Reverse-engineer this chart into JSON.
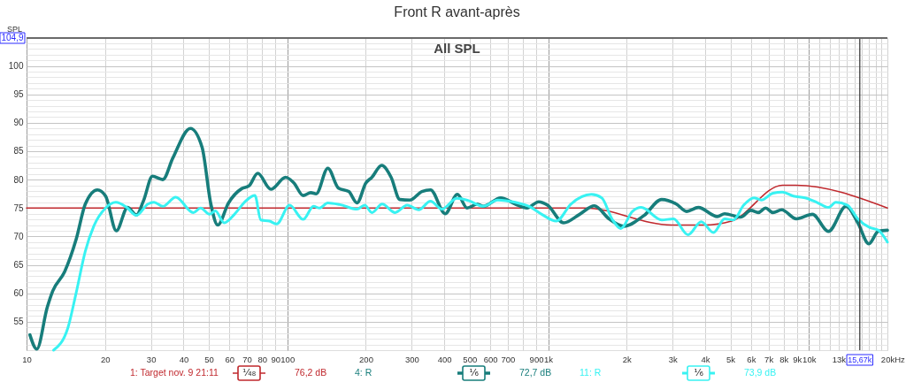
{
  "chart_data": {
    "type": "line",
    "title": "Front R avant-après",
    "subtitle": "All SPL",
    "ylabel": "SPL",
    "xlabel": "Hz",
    "log": "x",
    "grid": true,
    "legend": "bottom",
    "xlim": [
      10,
      20000
    ],
    "ylim": [
      50,
      104.9
    ],
    "xticks": [
      10,
      20,
      30,
      40,
      50,
      60,
      70,
      80,
      90,
      100,
      200,
      300,
      400,
      500,
      600,
      700,
      {
        "value": 800,
        "label": null
      },
      900,
      {
        "value": 1000,
        "label": "1k"
      },
      {
        "value": 2000,
        "label": "2k"
      },
      {
        "value": 3000,
        "label": "3k"
      },
      {
        "value": 4000,
        "label": "4k"
      },
      {
        "value": 5000,
        "label": "5k"
      },
      {
        "value": 6000,
        "label": "6k"
      },
      {
        "value": 7000,
        "label": "7k"
      },
      {
        "value": 8000,
        "label": "8k"
      },
      {
        "value": 9000,
        "label": "9k"
      },
      {
        "value": 10000,
        "label": "10k"
      },
      {
        "value": 11000,
        "label": null
      },
      {
        "value": 12000,
        "label": null
      },
      {
        "value": 13000,
        "label": "13k"
      },
      {
        "value": 14000,
        "label": null
      },
      {
        "value": 15000,
        "label": null
      },
      {
        "value": 16000,
        "label": null
      },
      {
        "value": 17000,
        "label": null
      },
      {
        "value": 18000,
        "label": null
      },
      {
        "value": 19000,
        "label": null
      },
      {
        "value": 20000,
        "label": "20k"
      }
    ],
    "yticks": [
      {
        "value": 51,
        "label": null
      },
      {
        "value": 52,
        "label": null
      },
      {
        "value": 53,
        "label": null
      },
      {
        "value": 54,
        "label": null
      },
      55,
      {
        "value": 56,
        "label": null
      },
      {
        "value": 57,
        "label": null
      },
      {
        "value": 58,
        "label": null
      },
      {
        "value": 59,
        "label": null
      },
      60,
      {
        "value": 61,
        "label": null
      },
      {
        "value": 62,
        "label": null
      },
      {
        "value": 63,
        "label": null
      },
      {
        "value": 64,
        "label": null
      },
      65,
      {
        "value": 66,
        "label": null
      },
      {
        "value": 67,
        "label": null
      },
      {
        "value": 68,
        "label": null
      },
      {
        "value": 69,
        "label": null
      },
      70,
      {
        "value": 71,
        "label": null
      },
      {
        "value": 72,
        "label": null
      },
      {
        "value": 73,
        "label": null
      },
      {
        "value": 74,
        "label": null
      },
      75,
      {
        "value": 76,
        "label": null
      },
      {
        "value": 77,
        "label": null
      },
      {
        "value": 78,
        "label": null
      },
      {
        "value": 79,
        "label": null
      },
      80,
      {
        "value": 81,
        "label": null
      },
      {
        "value": 82,
        "label": null
      },
      {
        "value": 83,
        "label": null
      },
      {
        "value": 84,
        "label": null
      },
      85,
      {
        "value": 86,
        "label": null
      },
      {
        "value": 87,
        "label": null
      },
      {
        "value": 88,
        "label": null
      },
      {
        "value": 89,
        "label": null
      },
      90,
      {
        "value": 91,
        "label": null
      },
      {
        "value": 92,
        "label": null
      },
      {
        "value": 93,
        "label": null
      },
      {
        "value": 94,
        "label": null
      },
      95,
      {
        "value": 96,
        "label": null
      },
      {
        "value": 97,
        "label": null
      },
      {
        "value": 98,
        "label": null
      },
      {
        "value": 99,
        "label": null
      },
      100,
      {
        "value": 101,
        "label": null
      },
      {
        "value": 102,
        "label": null
      },
      {
        "value": 103,
        "label": null
      },
      {
        "value": 104,
        "label": null
      }
    ],
    "series": [
      {
        "name": "1: Target nov. 9 21:11",
        "color": "#c0282d",
        "x": [
          10,
          1380,
          2980,
          3960,
          5050,
          7910,
          8900,
          20000
        ],
        "values": [
          75,
          75,
          72,
          72,
          72.7,
          79,
          79,
          75
        ]
      },
      {
        "name": "4: R",
        "color": "#177d7b",
        "x": [
          10.3,
          10.95,
          12,
          12.6,
          14,
          15.5,
          16.8,
          18.7,
          20.1,
          22.1,
          24.4,
          26.4,
          28.1,
          30.4,
          33.3,
          36.4,
          42.5,
          47.1,
          50.9,
          54.1,
          59.5,
          66.8,
          71.3,
          77,
          86.5,
          98.5,
          106,
          115,
          123,
          129,
          143,
          157,
          172,
          185,
          200,
          211,
          230,
          250,
          270,
          295,
          328,
          354,
          403,
          449,
          489,
          535,
          564,
          658,
          748,
          830,
          920,
          995,
          1147,
          1321,
          1504,
          1712,
          1948,
          2334,
          2724,
          3102,
          3396,
          3766,
          4455,
          4752,
          5473,
          5995,
          6393,
          6823,
          7278,
          7864,
          8950,
          10316,
          11885,
          13883,
          15400,
          16980,
          18450,
          20000
        ],
        "values": [
          52.7,
          50.2,
          57.5,
          60.4,
          63.8,
          69.5,
          75.7,
          78.2,
          77.1,
          71,
          75.1,
          73.8,
          76.3,
          80.6,
          80,
          83.8,
          89,
          85.7,
          75.7,
          72,
          75.9,
          78.4,
          78.9,
          81.1,
          78.3,
          80.4,
          79.4,
          77.2,
          77.7,
          77.5,
          82,
          78.5,
          77.9,
          75.9,
          79.4,
          80.4,
          82.5,
          80.4,
          76.5,
          76.4,
          77.9,
          78.2,
          74,
          77.4,
          75,
          75.7,
          75.3,
          76.8,
          75.7,
          75,
          76.1,
          75.5,
          72.4,
          73.9,
          75.4,
          73.1,
          71.8,
          73.7,
          76.5,
          75.7,
          74.4,
          75.1,
          73.5,
          74,
          73.4,
          74.6,
          74.2,
          75,
          74.2,
          74.7,
          73.1,
          73.9,
          70.9,
          75.3,
          72.4,
          68.7,
          70.9,
          71.1
        ]
      },
      {
        "name": "11: R",
        "color": "#38f2f2",
        "x": [
          12.7,
          14.4,
          15.5,
          16.8,
          18.1,
          20.1,
          22,
          24.1,
          26.4,
          29.2,
          30.8,
          33.3,
          37.3,
          43.6,
          46.5,
          50.3,
          53,
          57.2,
          62.7,
          69.5,
          75.1,
          79.1,
          85.4,
          91.1,
          102,
          115,
          126,
          133,
          143,
          159,
          185,
          198,
          211,
          231,
          259,
          288,
          319,
          354,
          391,
          447,
          495,
          564,
          641,
          748,
          852,
          945,
          1075,
          1223,
          1466,
          1605,
          1757,
          1899,
          2105,
          2275,
          2724,
          3024,
          3439,
          3864,
          4306,
          4752,
          5134,
          5620,
          6152,
          6566,
          7278,
          7910,
          8718,
          9672,
          10722,
          11885,
          12686,
          14060,
          15400,
          17075,
          18450,
          20000
        ],
        "values": [
          50,
          53.9,
          60.1,
          67.4,
          71.8,
          75,
          76,
          75.2,
          73.7,
          75.7,
          76,
          75.3,
          76.9,
          74.2,
          75,
          73.9,
          74.5,
          72.4,
          73.9,
          76.3,
          77.2,
          72.9,
          72.7,
          72.2,
          75.5,
          73,
          75.3,
          75,
          75.9,
          75.6,
          74.8,
          75.5,
          74.2,
          75.7,
          74.2,
          75.5,
          74.7,
          76.2,
          74.8,
          76.7,
          76.3,
          75.3,
          76.4,
          76,
          75.2,
          73.9,
          72.7,
          75.7,
          77.4,
          76.8,
          73.1,
          71.4,
          74.4,
          75.1,
          72.9,
          73.1,
          70.3,
          72.6,
          70.7,
          73.1,
          72.9,
          75.5,
          76.8,
          76.4,
          77.6,
          77.8,
          77.1,
          76.8,
          76,
          75.1,
          76,
          75.5,
          73.1,
          71.6,
          71.1,
          69
        ]
      }
    ],
    "ref_lines": [
      {
        "axis": "x",
        "value": 15670,
        "label": "15,67k",
        "color": "#404040"
      },
      {
        "axis": "y",
        "value": 104.9,
        "label": "104,9",
        "color": "#6a6a6a"
      }
    ],
    "annotations": [
      "¹⁄₄₈",
      "76,2 dB",
      "¹⁄₆",
      "72,7 dB",
      "¹⁄₆",
      "73,9 dB"
    ]
  }
}
